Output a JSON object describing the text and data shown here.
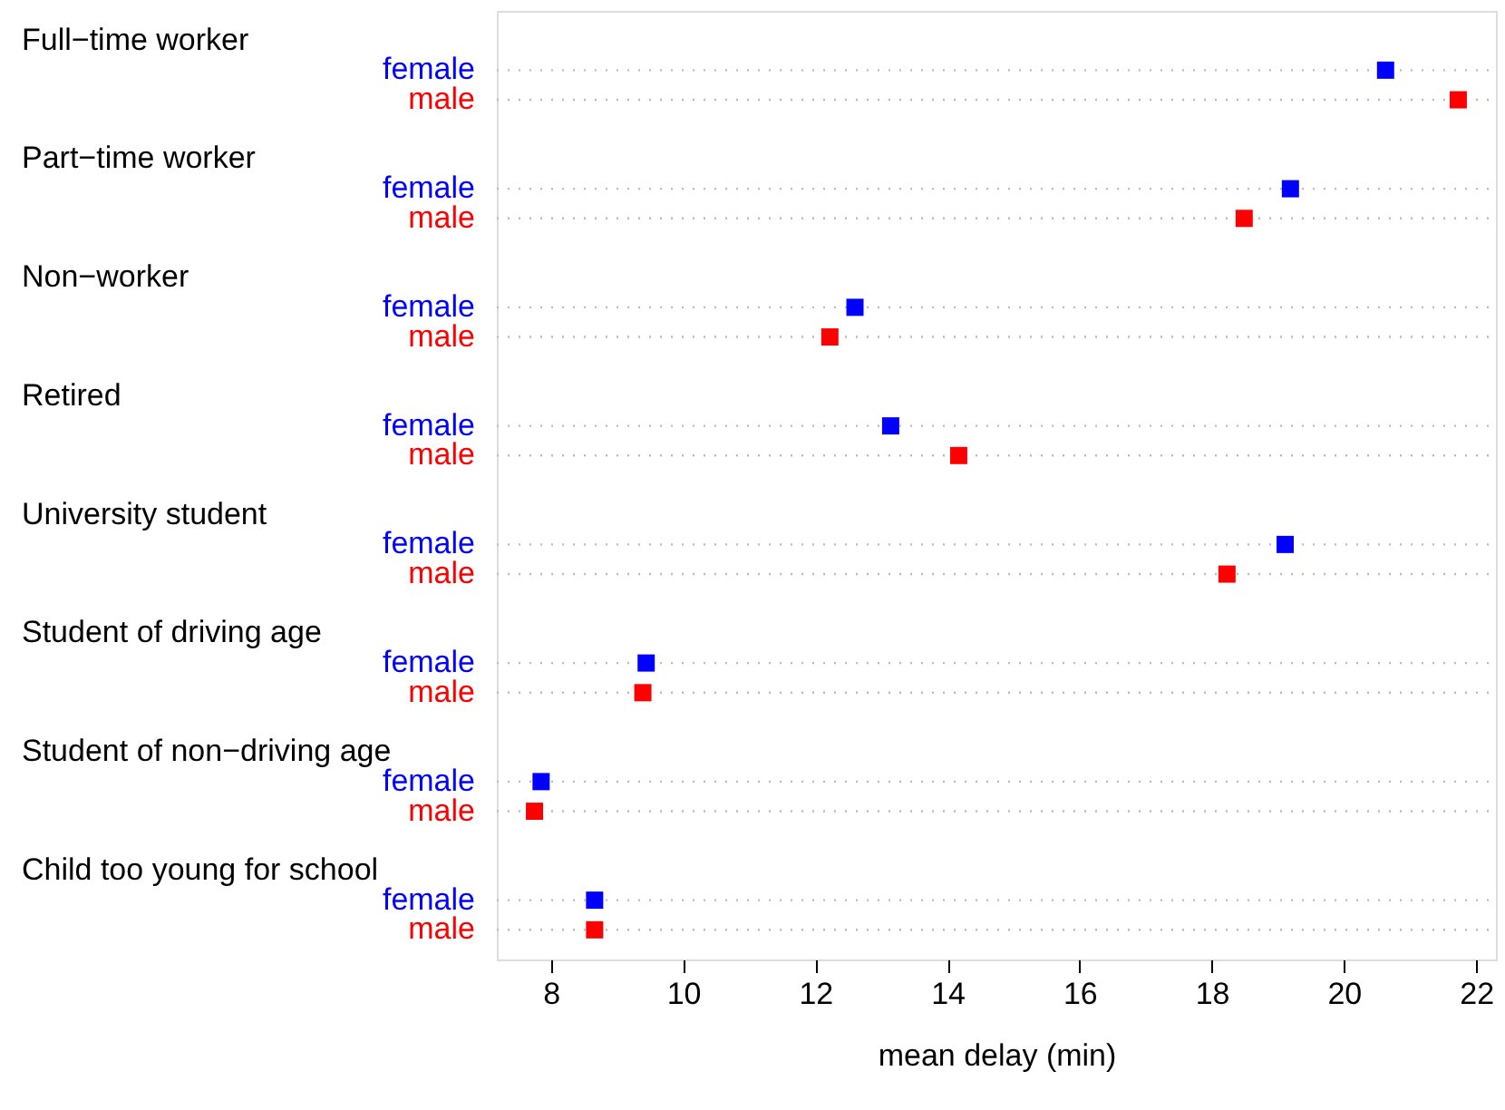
{
  "chart_data": {
    "type": "scatter",
    "orientation": "horizontal",
    "xlabel": "mean delay (min)",
    "categories": [
      "Full−time worker",
      "Part−time worker",
      "Non−worker",
      "Retired",
      "University student",
      "Student of driving age",
      "Student of non−driving age",
      "Child too young for school"
    ],
    "series": [
      {
        "name": "female",
        "color": "#0000ff",
        "values": [
          20.63,
          19.19,
          12.6,
          13.14,
          19.11,
          9.44,
          7.85,
          8.66
        ]
      },
      {
        "name": "male",
        "color": "#ff0000",
        "values": [
          21.73,
          18.49,
          12.22,
          14.17,
          18.23,
          9.39,
          7.75,
          8.66
        ]
      }
    ],
    "xlim": [
      7.18,
      22.3
    ],
    "xticks": [
      8,
      10,
      12,
      14,
      16,
      18,
      20,
      22
    ],
    "grid": "y",
    "marker": "square"
  }
}
